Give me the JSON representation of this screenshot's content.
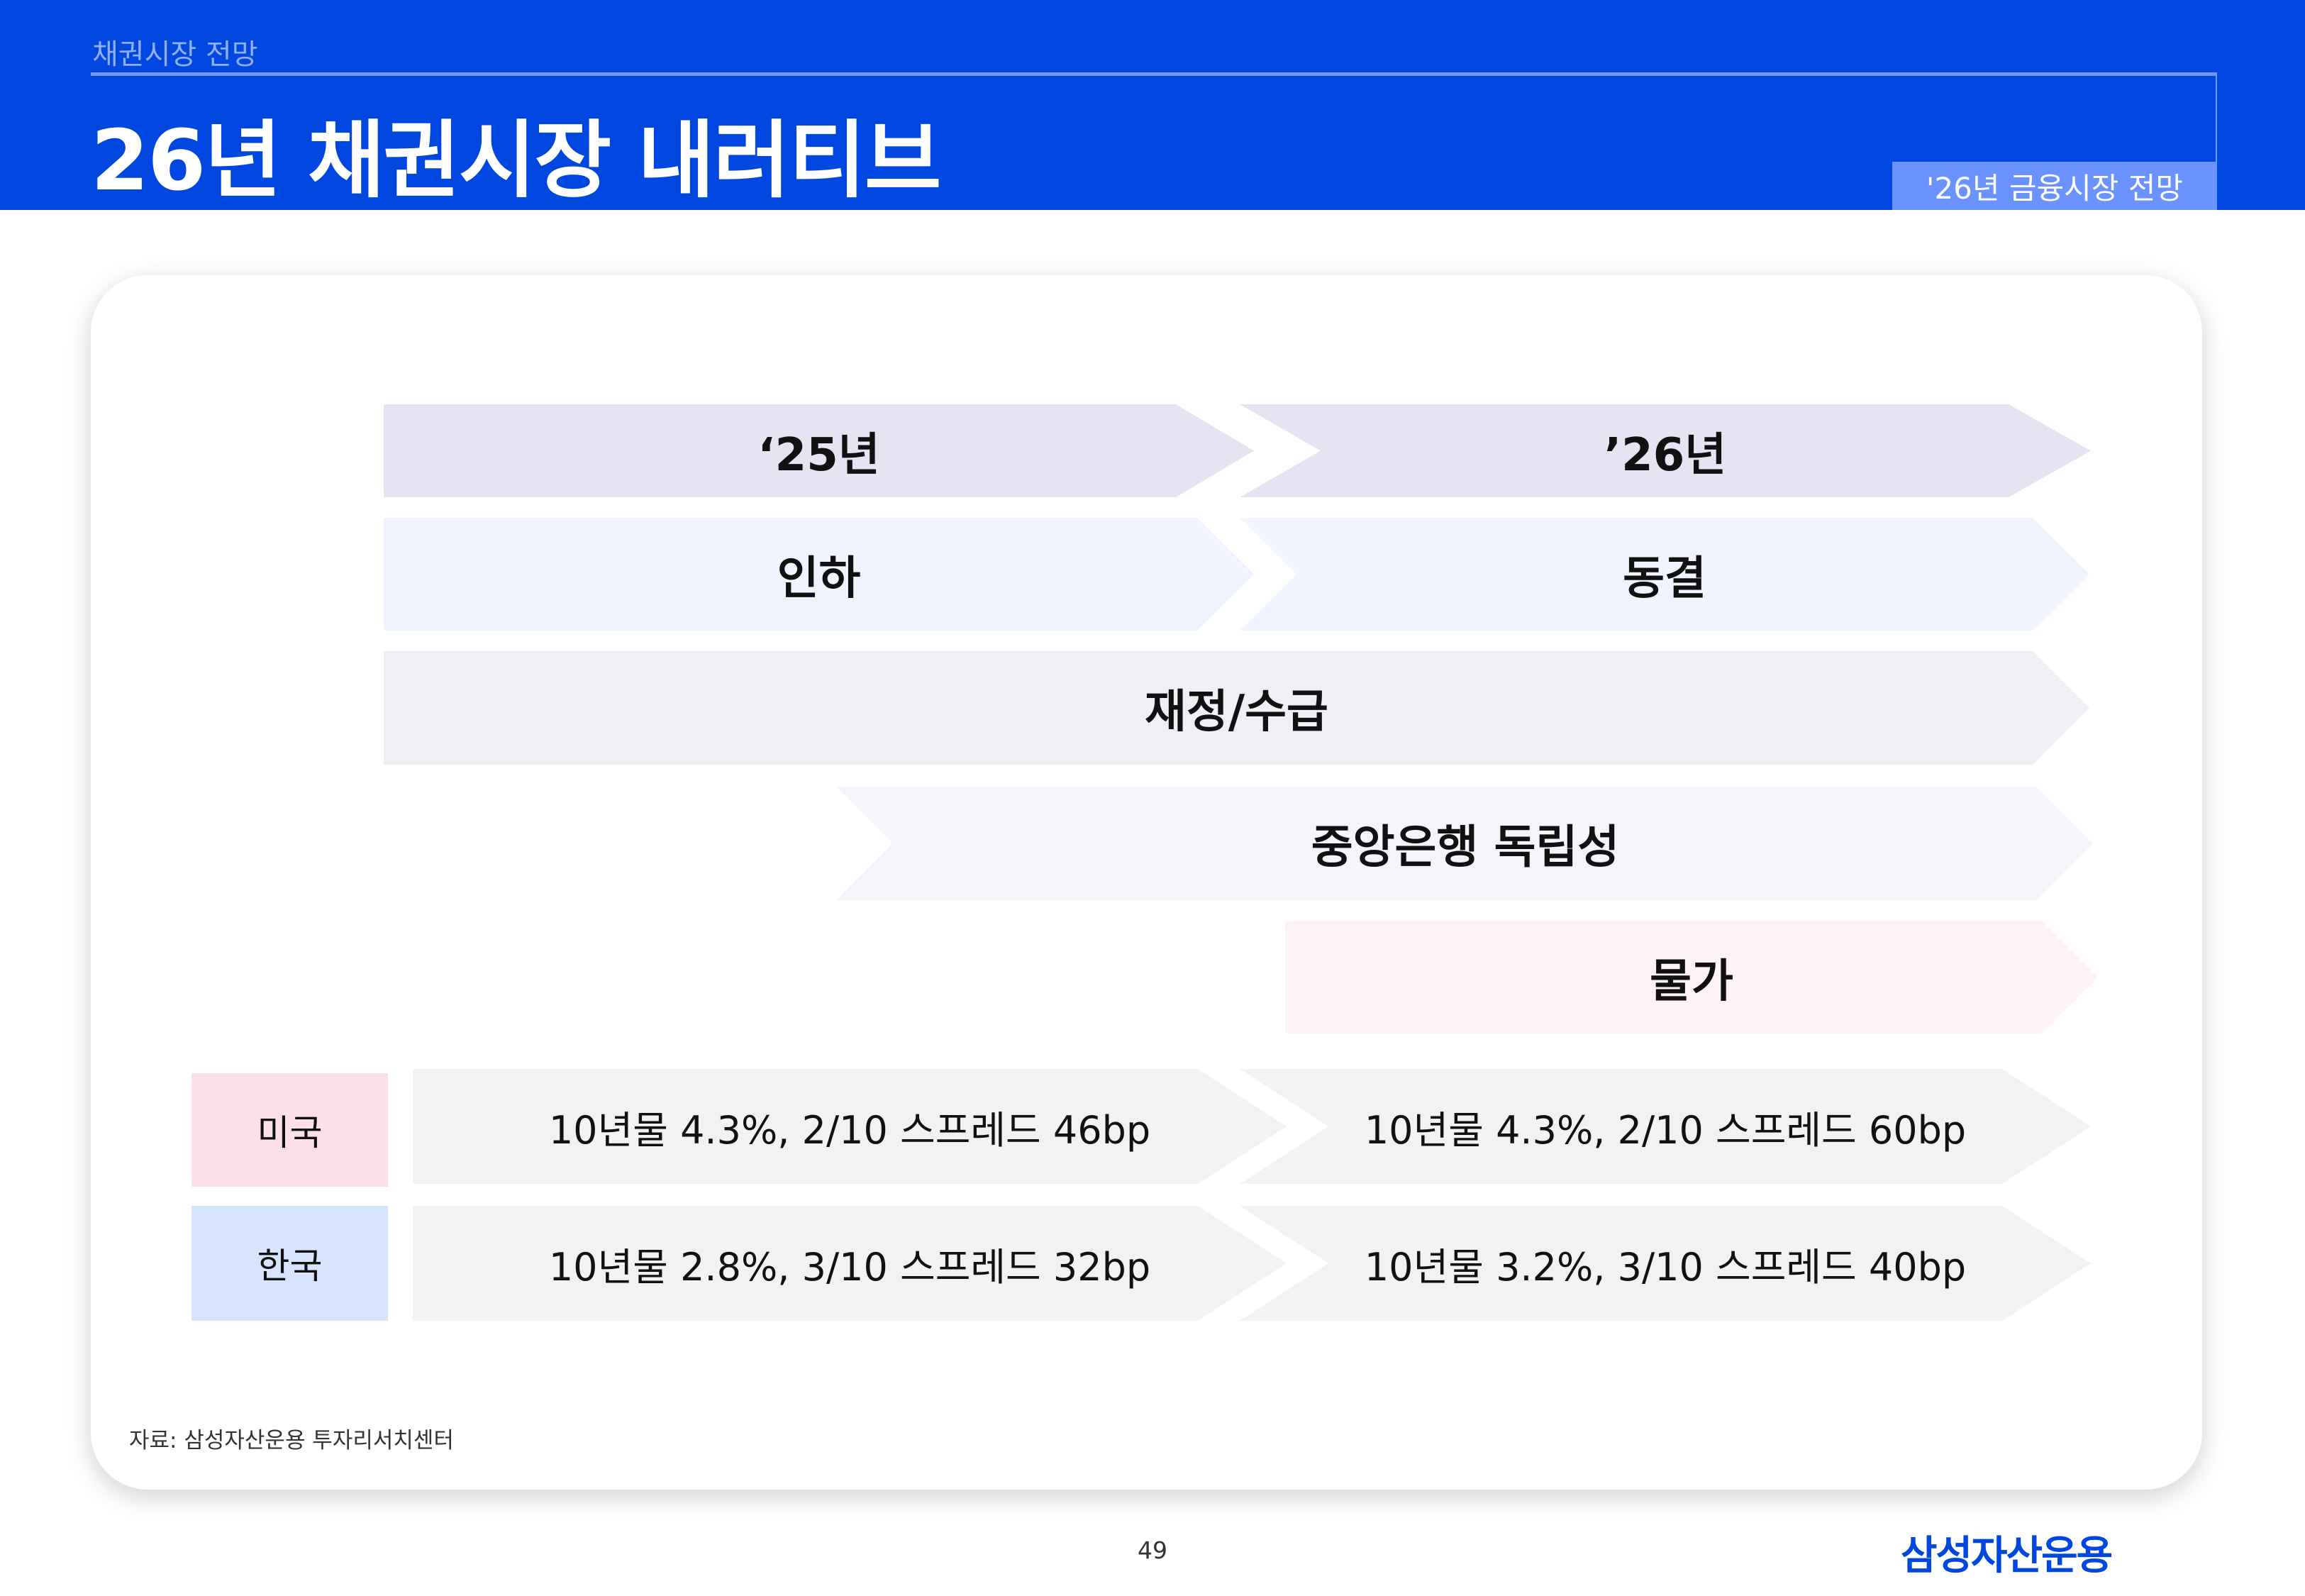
{
  "header": {
    "section": "채권시장 전망",
    "title": "26년 채권시장 내러티브",
    "tag": "'26년 금융시장 전망"
  },
  "timeline": {
    "year_left": "‘25년",
    "year_right": "’26년",
    "policy_left": "인하",
    "policy_right": "동결",
    "fiscal": "재정/수급",
    "central_bank": "중앙은행 독립성",
    "inflation": "물가"
  },
  "countries": [
    {
      "label": "미국",
      "color": "#fde0e7",
      "y25": "10년물 4.3%, 2/10 스프레드 46bp",
      "y26": "10년물 4.3%, 2/10 스프레드 60bp"
    },
    {
      "label": "한국",
      "color": "#d6e4fd",
      "y25": "10년물 2.8%, 3/10 스프레드 32bp",
      "y26": "10년물 3.2%, 3/10 스프레드 40bp"
    }
  ],
  "colors": {
    "brand": "#0047e0",
    "year_row": "#e8e3f3",
    "policy_row": "#eff4fe",
    "fiscal_row": "#eff0f5",
    "central_bank_row": "#f5f4fa",
    "inflation_row": "#fdf3f4",
    "country_row": "#f2f2f2"
  },
  "footer": {
    "source": "자료: 삼성자산운용 투자리서치센터",
    "page": "49",
    "logo": "삼성자산운용"
  }
}
